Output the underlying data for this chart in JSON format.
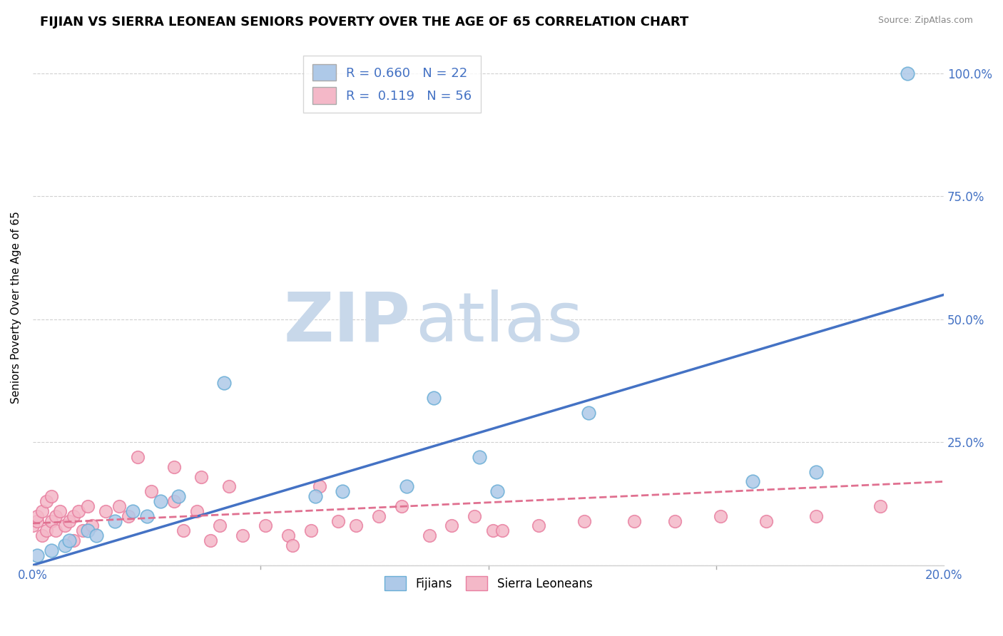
{
  "title": "FIJIAN VS SIERRA LEONEAN SENIORS POVERTY OVER THE AGE OF 65 CORRELATION CHART",
  "source": "Source: ZipAtlas.com",
  "ylabel": "Seniors Poverty Over the Age of 65",
  "watermark_zip": "ZIP",
  "watermark_atlas": "atlas",
  "fijian_color": "#aec9e8",
  "fijian_edge": "#6aaed6",
  "sierra_color": "#f4b8c8",
  "sierra_edge": "#e87fa0",
  "fijian_line_color": "#4472c4",
  "sierra_line_color": "#e07090",
  "legend_fijian_R": "0.660",
  "legend_fijian_N": "22",
  "legend_sierra_R": "0.119",
  "legend_sierra_N": "56",
  "fijian_x": [
    0.001,
    0.004,
    0.007,
    0.008,
    0.012,
    0.014,
    0.018,
    0.022,
    0.025,
    0.028,
    0.032,
    0.042,
    0.062,
    0.068,
    0.082,
    0.088,
    0.098,
    0.102,
    0.122,
    0.158,
    0.172,
    0.192
  ],
  "fijian_y": [
    0.02,
    0.03,
    0.04,
    0.05,
    0.07,
    0.06,
    0.09,
    0.11,
    0.1,
    0.13,
    0.14,
    0.37,
    0.14,
    0.15,
    0.16,
    0.34,
    0.22,
    0.15,
    0.31,
    0.17,
    0.19,
    1.0
  ],
  "sierra_x": [
    0.0,
    0.001,
    0.001,
    0.002,
    0.002,
    0.003,
    0.003,
    0.004,
    0.004,
    0.005,
    0.005,
    0.006,
    0.007,
    0.008,
    0.009,
    0.009,
    0.01,
    0.011,
    0.012,
    0.013,
    0.016,
    0.019,
    0.021,
    0.023,
    0.026,
    0.031,
    0.031,
    0.033,
    0.036,
    0.037,
    0.039,
    0.041,
    0.043,
    0.046,
    0.051,
    0.056,
    0.057,
    0.061,
    0.063,
    0.067,
    0.071,
    0.076,
    0.081,
    0.087,
    0.092,
    0.097,
    0.101,
    0.103,
    0.111,
    0.121,
    0.132,
    0.141,
    0.151,
    0.161,
    0.172,
    0.186
  ],
  "sierra_y": [
    0.08,
    0.09,
    0.1,
    0.11,
    0.06,
    0.07,
    0.13,
    0.09,
    0.14,
    0.1,
    0.07,
    0.11,
    0.08,
    0.09,
    0.05,
    0.1,
    0.11,
    0.07,
    0.12,
    0.08,
    0.11,
    0.12,
    0.1,
    0.22,
    0.15,
    0.13,
    0.2,
    0.07,
    0.11,
    0.18,
    0.05,
    0.08,
    0.16,
    0.06,
    0.08,
    0.06,
    0.04,
    0.07,
    0.16,
    0.09,
    0.08,
    0.1,
    0.12,
    0.06,
    0.08,
    0.1,
    0.07,
    0.07,
    0.08,
    0.09,
    0.09,
    0.09,
    0.1,
    0.09,
    0.1,
    0.12
  ],
  "fijian_trend": [
    0.0,
    0.55
  ],
  "sierra_trend": [
    0.085,
    0.17
  ],
  "xlim": [
    0.0,
    0.2
  ],
  "ylim": [
    0.0,
    1.05
  ],
  "yticks": [
    0.0,
    0.25,
    0.5,
    0.75,
    1.0
  ],
  "ytick_labels": [
    "",
    "25.0%",
    "50.0%",
    "75.0%",
    "100.0%"
  ],
  "xticks": [
    0.0,
    0.05,
    0.1,
    0.15,
    0.2
  ],
  "xtick_labels": [
    "0.0%",
    "",
    "",
    "",
    "20.0%"
  ],
  "grid_color": "#d0d0d0",
  "background_color": "#ffffff",
  "axis_color": "#4472c4",
  "title_fontsize": 13,
  "label_fontsize": 11,
  "tick_fontsize": 12,
  "watermark_color": "#c8d8ea",
  "watermark_fontsize": 70
}
